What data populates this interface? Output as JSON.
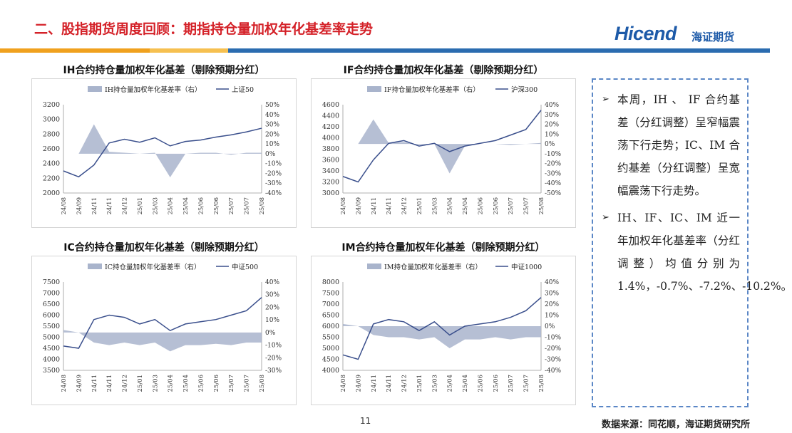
{
  "header": {
    "title": "二、股指期货周度回顾：期指持仓量加权年化基差率走势",
    "logo_brand": "Hicend",
    "logo_cn": "海证期货"
  },
  "colors": {
    "accent_red": "#d42128",
    "brand_blue": "#1d5aa8",
    "line": "#3a4f8c",
    "area": "#a9b4cc",
    "band_orange": "#f0a11e",
    "band_blue": "#2b6cb0"
  },
  "x_ticks": [
    "24/08",
    "24/09",
    "24/11",
    "24/11",
    "24/12",
    "25/01",
    "25/03",
    "25/04",
    "25/04",
    "25/06",
    "25/06",
    "25/07",
    "25/07",
    "25/08"
  ],
  "panels": [
    {
      "id": "ih",
      "title": "IH合约持仓量加权年化基差（剔除预期分红）",
      "legend_area": "IH持仓量加权年化基差率（右）",
      "legend_line": "上证50",
      "left_ticks": [
        "3200",
        "3000",
        "2800",
        "2600",
        "2400",
        "2200",
        "2000"
      ],
      "right_ticks": [
        "50%",
        "40%",
        "30%",
        "20%",
        "10%",
        "0%",
        "-10%",
        "-20%",
        "-30%",
        "-40%"
      ]
    },
    {
      "id": "if",
      "title": "IF合约持仓量加权年化基差（剔除预期分红）",
      "legend_area": "IF持仓量加权年化基差率（右）",
      "legend_line": "沪深300",
      "left_ticks": [
        "4600",
        "4400",
        "4200",
        "4000",
        "3800",
        "3600",
        "3400",
        "3200",
        "3000"
      ],
      "right_ticks": [
        "40%",
        "30%",
        "20%",
        "10%",
        "0%",
        "-10%",
        "-20%",
        "-30%",
        "-40%",
        "-50%"
      ]
    },
    {
      "id": "ic",
      "title": "IC合约持仓量加权年化基差（剔除预期分红）",
      "legend_area": "IC持仓量加权年化基差率（右）",
      "legend_line": "中证500",
      "left_ticks": [
        "7500",
        "7000",
        "6500",
        "6000",
        "5500",
        "5000",
        "4500",
        "4000",
        "3500"
      ],
      "right_ticks": [
        "40%",
        "30%",
        "20%",
        "10%",
        "0%",
        "-10%",
        "-20%",
        "-30%"
      ]
    },
    {
      "id": "im",
      "title": "IM合约持仓量加权年化基差（剔除预期分红）",
      "legend_area": "IM持仓量加权年化基差率（右）",
      "legend_line": "中证1000",
      "left_ticks": [
        "8000",
        "7500",
        "7000",
        "6500",
        "6000",
        "5500",
        "5000",
        "4500",
        "4000"
      ],
      "right_ticks": [
        "40%",
        "30%",
        "20%",
        "10%",
        "0%",
        "-10%",
        "-20%",
        "-30%",
        "-40%"
      ]
    }
  ],
  "chart_data": [
    {
      "type": "line",
      "title": "IH合约持仓量加权年化基差（剔除预期分红）",
      "x": [
        "24/08",
        "24/09",
        "24/11",
        "24/11",
        "24/12",
        "25/01",
        "25/03",
        "25/04",
        "25/04",
        "25/06",
        "25/06",
        "25/07",
        "25/07",
        "25/08"
      ],
      "ylim": [
        2000,
        3200
      ],
      "y2lim": [
        -40,
        50
      ],
      "series": [
        {
          "name": "上证50",
          "axis": "left",
          "values": [
            2300,
            2220,
            2380,
            2680,
            2730,
            2690,
            2750,
            2640,
            2700,
            2720,
            2760,
            2790,
            2830,
            2880
          ]
        },
        {
          "name": "IH持仓量加权年化基差率（右）",
          "axis": "right",
          "type": "area",
          "values": [
            0,
            0,
            30,
            2,
            1,
            0,
            1,
            -24,
            0,
            1,
            1,
            -1,
            1,
            1
          ]
        }
      ]
    },
    {
      "type": "line",
      "title": "IF合约持仓量加权年化基差（剔除预期分红）",
      "x": [
        "24/08",
        "24/09",
        "24/11",
        "24/11",
        "24/12",
        "25/01",
        "25/03",
        "25/04",
        "25/04",
        "25/06",
        "25/06",
        "25/07",
        "25/07",
        "25/08"
      ],
      "ylim": [
        3000,
        4600
      ],
      "y2lim": [
        -50,
        40
      ],
      "series": [
        {
          "name": "沪深300",
          "axis": "left",
          "values": [
            3300,
            3200,
            3600,
            3900,
            3950,
            3850,
            3900,
            3750,
            3850,
            3900,
            3950,
            4050,
            4150,
            4500
          ]
        },
        {
          "name": "IF持仓量加权年化基差率（右）",
          "axis": "right",
          "type": "area",
          "values": [
            0,
            0,
            25,
            1,
            2,
            -1,
            0,
            -30,
            -2,
            0,
            0,
            -1,
            0,
            1
          ]
        }
      ]
    },
    {
      "type": "line",
      "title": "IC合约持仓量加权年化基差（剔除预期分红）",
      "x": [
        "24/08",
        "24/09",
        "24/11",
        "24/11",
        "24/12",
        "25/01",
        "25/03",
        "25/04",
        "25/04",
        "25/06",
        "25/06",
        "25/07",
        "25/07",
        "25/08"
      ],
      "ylim": [
        3500,
        7500
      ],
      "y2lim": [
        -30,
        40
      ],
      "series": [
        {
          "name": "中证500",
          "axis": "left",
          "values": [
            4600,
            4500,
            5800,
            6000,
            5900,
            5600,
            5800,
            5300,
            5600,
            5700,
            5800,
            6000,
            6200,
            6800
          ]
        },
        {
          "name": "IC持仓量加权年化基差率（右）",
          "axis": "right",
          "type": "area",
          "values": [
            2,
            0,
            -8,
            -10,
            -8,
            -10,
            -8,
            -15,
            -10,
            -10,
            -9,
            -10,
            -8,
            -8
          ]
        }
      ]
    },
    {
      "type": "line",
      "title": "IM合约持仓量加权年化基差（剔除预期分红）",
      "x": [
        "24/08",
        "24/09",
        "24/11",
        "24/11",
        "24/12",
        "25/01",
        "25/03",
        "25/04",
        "25/04",
        "25/06",
        "25/06",
        "25/07",
        "25/07",
        "25/08"
      ],
      "ylim": [
        4000,
        8000
      ],
      "y2lim": [
        -40,
        40
      ],
      "series": [
        {
          "name": "中证1000",
          "axis": "left",
          "values": [
            4700,
            4500,
            6100,
            6300,
            6200,
            5800,
            6200,
            5600,
            6000,
            6100,
            6200,
            6400,
            6700,
            7300
          ]
        },
        {
          "name": "IM持仓量加权年化基差率（右）",
          "axis": "right",
          "type": "area",
          "values": [
            2,
            0,
            -8,
            -10,
            -10,
            -12,
            -10,
            -20,
            -12,
            -12,
            -10,
            -12,
            -10,
            -10
          ]
        }
      ]
    }
  ],
  "commentary": {
    "bullet1": "本周，IH 、 IF 合约基差（分红调整）呈窄幅震荡下行走势；IC、IM 合约基差（分红调整）呈宽幅震荡下行走势。",
    "bullet2": "IH、IF、IC、IM 近一年加权年化基差率（分红调整）均值分别为 1.4%，-0.7%、-7.2%、-10.2%。",
    "bullet_mark": "➢"
  },
  "footer": {
    "page_number": "11",
    "source": "数据来源：同花顺，海证期货研究所"
  }
}
